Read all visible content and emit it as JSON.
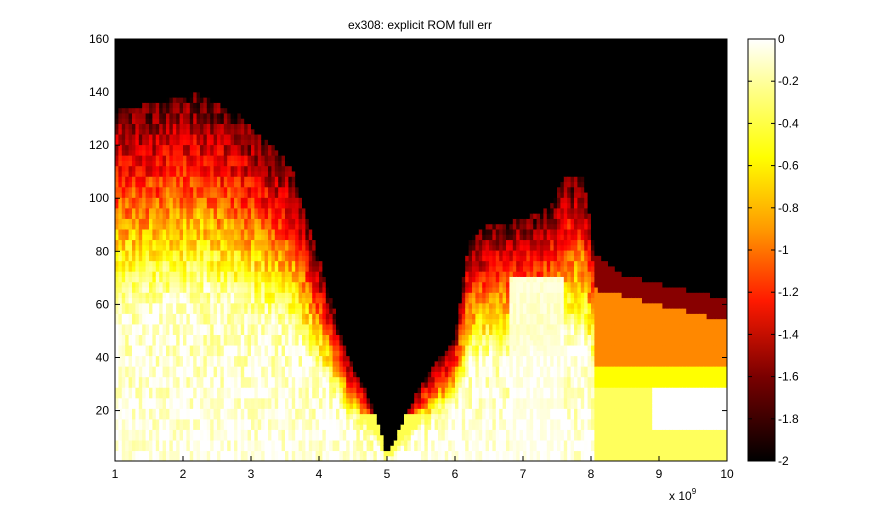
{
  "figure": {
    "title": "ex308: explicit ROM full err"
  },
  "chart_data": {
    "type": "heatmap",
    "title": "ex308: explicit ROM full err",
    "xlabel": "",
    "ylabel": "",
    "x_multiplier": "x 10",
    "x_multiplier_exponent": "9",
    "xlim": [
      1,
      10
    ],
    "ylim": [
      1,
      160
    ],
    "x_ticks": [
      "1",
      "2",
      "3",
      "4",
      "5",
      "6",
      "7",
      "8",
      "9",
      "10"
    ],
    "y_ticks": [
      "20",
      "40",
      "60",
      "80",
      "100",
      "120",
      "140",
      "160"
    ],
    "colormap": "hot",
    "color_range": [
      -2,
      0
    ],
    "colorbar_ticks": [
      "0",
      "-0.2",
      "-0.4",
      "-0.6",
      "-0.8",
      "-1",
      "-1.2",
      "-1.4",
      "-1.6",
      "-1.8",
      "-2"
    ],
    "colorbar_location": "right",
    "grid": false,
    "regions": [
      {
        "label": "left lobe",
        "x_range": [
          1,
          4.7
        ],
        "y_top_approx": 140,
        "values_range": [
          -1.6,
          0
        ]
      },
      {
        "label": "valley",
        "x": 5,
        "y_top_approx": 5,
        "value": -2
      },
      {
        "label": "right lobe",
        "x_range": [
          5.3,
          8.1
        ],
        "y_top_approx": 108,
        "values_range": [
          -1.8,
          0
        ]
      },
      {
        "label": "right plateau",
        "x_range": [
          8,
          10
        ],
        "y_top_approx": 72,
        "values_range": [
          -1.6,
          -0.3
        ]
      }
    ]
  }
}
